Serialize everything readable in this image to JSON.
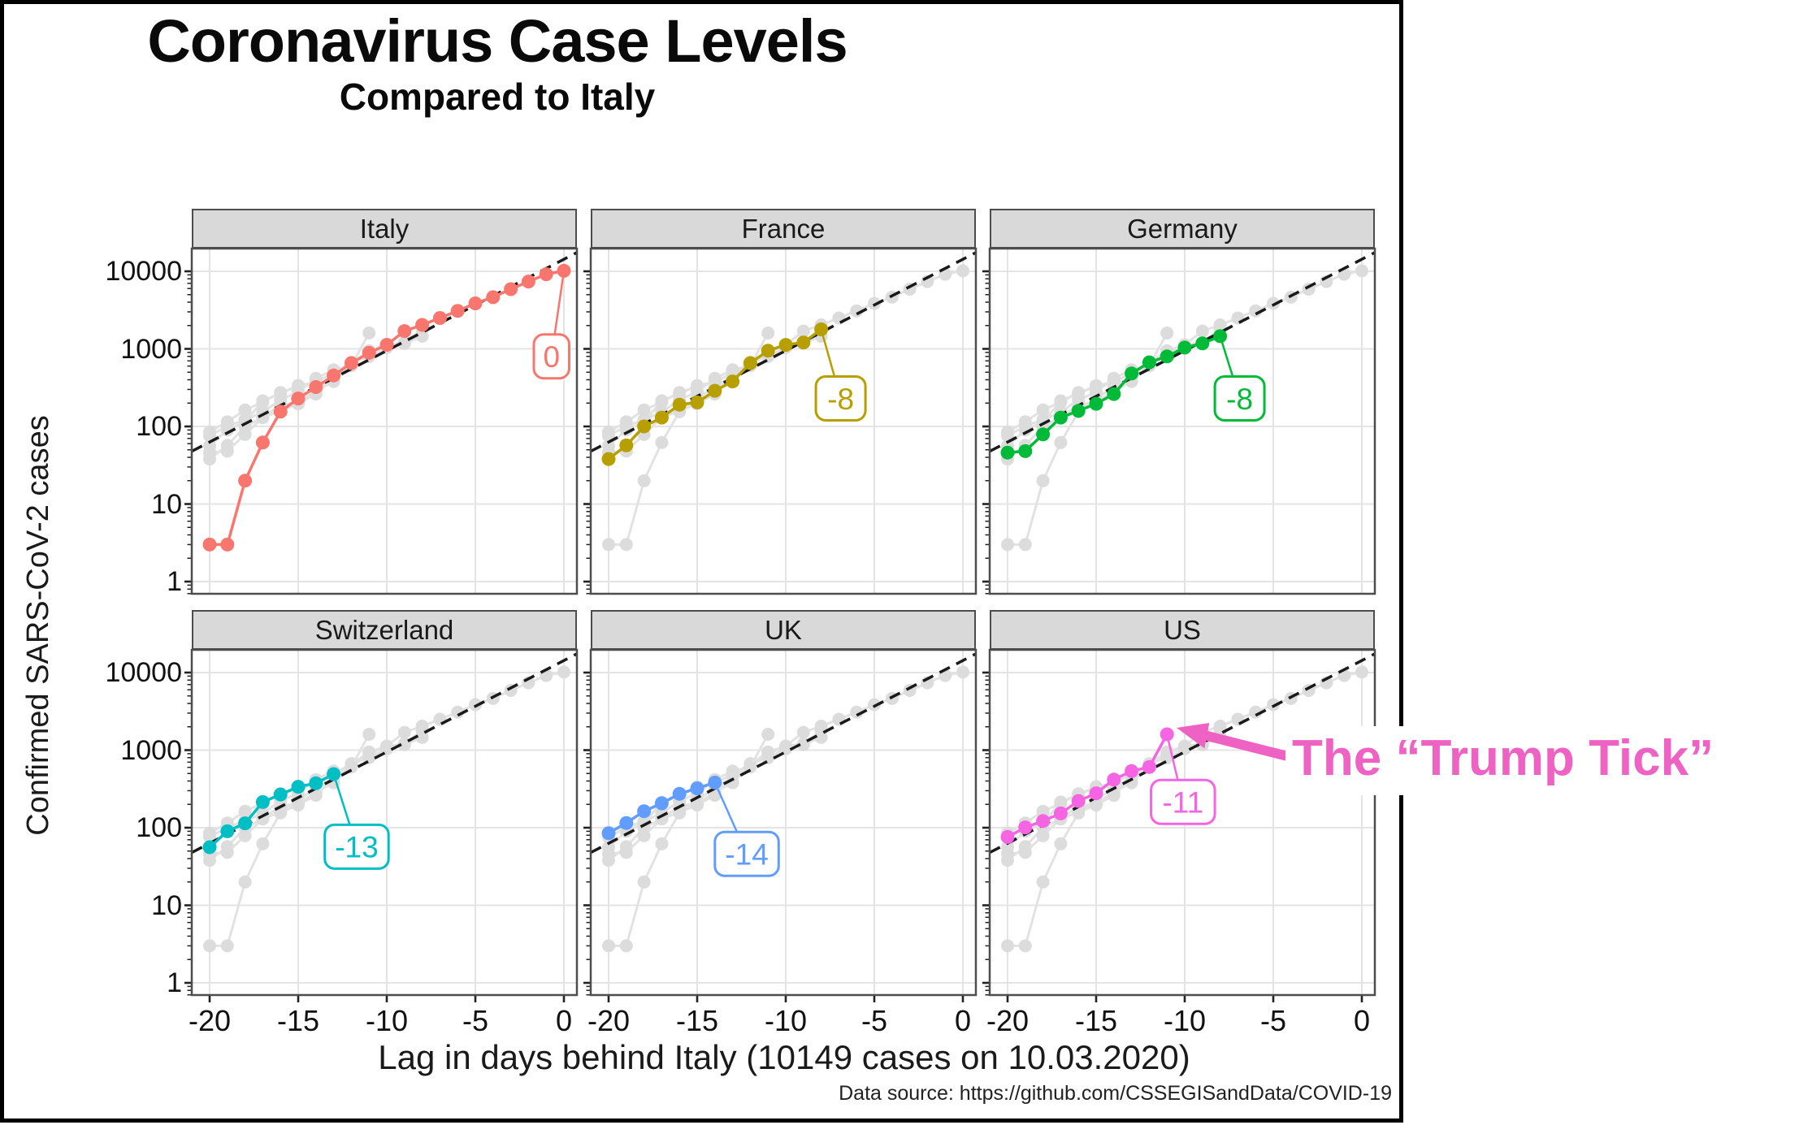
{
  "figure": {
    "title": "Coronavirus Case Levels",
    "subtitle": "Compared to Italy",
    "y_axis_label": "Confirmed SARS-CoV-2 cases",
    "x_axis_label": "Lag in days behind Italy (10149 cases on 10.03.2020)",
    "source": "Data source: https://github.com/CSSEGISandData/COVID-19",
    "annotation": {
      "text": "The “Trump Tick”",
      "color": "#ED62C3",
      "target_facet": "US"
    }
  },
  "chart_data": {
    "type": "scatter",
    "title": "Coronavirus Case Levels",
    "subtitle": "Compared to Italy",
    "xlabel": "Lag in days behind Italy (10149 cases on 10.03.2020)",
    "ylabel": "Confirmed SARS-CoV-2 cases",
    "x_ticks": [
      -20,
      -15,
      -10,
      -5,
      0
    ],
    "y_ticks": [
      1,
      10,
      100,
      1000,
      10000
    ],
    "xlim": [
      -21,
      1.05
    ],
    "y_scale": "log10",
    "ylim": [
      0.7,
      19500
    ],
    "grid": "major-light-gray",
    "panel_background": "#ffffff",
    "strip_background": "#d9d9d9",
    "gray_point_color": "#dcdcdc",
    "gray_line_color": "#e2e2e2",
    "reference_line": {
      "style": "dashed",
      "color": "#1a1a1a",
      "description": "Italy exponential trend line, identical in every facet",
      "points": [
        {
          "x": -21,
          "y": 48
        },
        {
          "x": 1.05,
          "y": 19000
        }
      ]
    },
    "note": "Each facet shows that country's cases shifted by its lag (colored) plus the other five countries' shifted series in light gray.",
    "facets": [
      {
        "name": "Italy",
        "color": "#F8766D",
        "lag_label": "0",
        "x_start": -20,
        "label_box": {
          "x": -0.7,
          "y": 800
        },
        "values": [
          3,
          3,
          20,
          62,
          155,
          229,
          322,
          453,
          655,
          888,
          1128,
          1694,
          2036,
          2502,
          3089,
          3858,
          4636,
          5883,
          7375,
          9172,
          10149
        ]
      },
      {
        "name": "France",
        "color": "#B79F00",
        "lag_label": "-8",
        "x_start": -20,
        "label_box": {
          "x": -6.9,
          "y": 230
        },
        "values": [
          38,
          57,
          100,
          130,
          191,
          204,
          288,
          380,
          656,
          949,
          1126,
          1209,
          1784
        ]
      },
      {
        "name": "Germany",
        "color": "#00BA38",
        "lag_label": "-8",
        "x_start": -20,
        "label_box": {
          "x": -6.9,
          "y": 230
        },
        "values": [
          46,
          48,
          79,
          130,
          159,
          196,
          262,
          482,
          670,
          799,
          1040,
          1176,
          1457
        ]
      },
      {
        "name": "Switzerland",
        "color": "#00BFC4",
        "lag_label": "-13",
        "x_start": -20,
        "label_box": {
          "x": -11.7,
          "y": 57
        },
        "values": [
          56,
          90,
          114,
          214,
          268,
          337,
          374,
          491
        ]
      },
      {
        "name": "UK",
        "color": "#619CFF",
        "lag_label": "-14",
        "x_start": -20,
        "label_box": {
          "x": -12.2,
          "y": 46
        },
        "values": [
          85,
          115,
          163,
          206,
          273,
          321,
          382
        ]
      },
      {
        "name": "US",
        "color": "#F564E3",
        "lag_label": "-11",
        "x_start": -20,
        "label_box": {
          "x": -10.1,
          "y": 215
        },
        "values": [
          76,
          101,
          122,
          153,
          221,
          278,
          417,
          537,
          605,
          1600
        ]
      }
    ]
  }
}
